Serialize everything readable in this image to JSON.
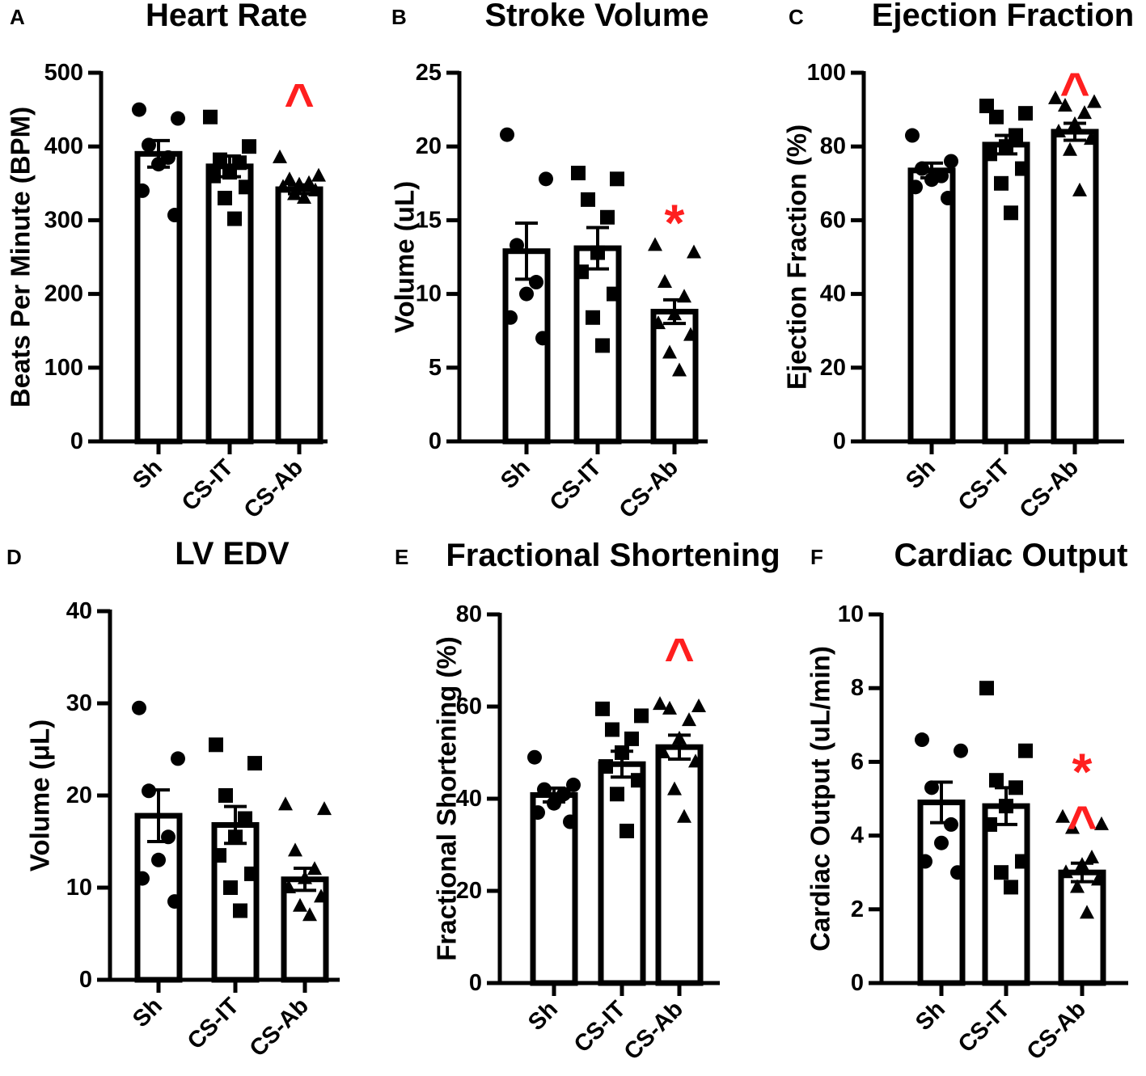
{
  "figure": {
    "colors": {
      "axis": "#000000",
      "bar_fill": "#ffffff",
      "point": "#000000",
      "annotation": "#ff1f1f"
    }
  },
  "chart_data": [
    {
      "type": "bar",
      "letter": "A",
      "title": "Heart Rate",
      "ylabel": "Beats Per Minute (BPM)",
      "xlabel": "",
      "ylim": [
        0,
        500
      ],
      "yticks": [
        0,
        100,
        200,
        300,
        400,
        500
      ],
      "categories": [
        "Sh",
        "CS-IT",
        "CS-Ab"
      ],
      "values": [
        390,
        373,
        342
      ],
      "sem": [
        18,
        14,
        6
      ],
      "points": [
        {
          "shape": "circle",
          "values": [
            450,
            438,
            402,
            385,
            376,
            340,
            307
          ]
        },
        {
          "shape": "square",
          "values": [
            440,
            400,
            382,
            378,
            365,
            360,
            345,
            330,
            302
          ]
        },
        {
          "shape": "triangle",
          "values": [
            385,
            360,
            355,
            350,
            348,
            345,
            340,
            335,
            330
          ]
        }
      ],
      "annotations": [
        {
          "category": "CS-Ab",
          "symbol": "^",
          "value": 480
        }
      ]
    },
    {
      "type": "bar",
      "letter": "B",
      "title": "Stroke Volume",
      "ylabel": "Volume (uL)",
      "xlabel": "",
      "ylim": [
        0,
        25
      ],
      "yticks": [
        0,
        5,
        10,
        15,
        20,
        25
      ],
      "categories": [
        "Sh",
        "CS-IT",
        "CS-Ab"
      ],
      "values": [
        12.9,
        13.1,
        8.8
      ],
      "sem": [
        1.9,
        1.4,
        0.8
      ],
      "points": [
        {
          "shape": "circle",
          "values": [
            20.8,
            17.8,
            13.3,
            10.8,
            10.0,
            8.4,
            7.0
          ]
        },
        {
          "shape": "square",
          "values": [
            18.2,
            17.8,
            16.4,
            15.2,
            12.8,
            11.5,
            10.0,
            8.4,
            6.5
          ]
        },
        {
          "shape": "triangle",
          "values": [
            13.3,
            12.8,
            10.8,
            9.8,
            8.6,
            8.0,
            7.2,
            6.0,
            4.8
          ]
        }
      ],
      "annotations": [
        {
          "category": "CS-Ab",
          "symbol": "*",
          "value": 15.5
        }
      ]
    },
    {
      "type": "bar",
      "letter": "C",
      "title": "Ejection Fraction",
      "ylabel": "Ejection Fraction (%)",
      "xlabel": "",
      "ylim": [
        0,
        100
      ],
      "yticks": [
        0,
        20,
        40,
        60,
        80,
        100
      ],
      "categories": [
        "Sh",
        "CS-IT",
        "CS-Ab"
      ],
      "values": [
        73.5,
        80.5,
        84
      ],
      "sem": [
        2,
        2.5,
        2.3
      ],
      "points": [
        {
          "shape": "circle",
          "values": [
            83,
            76,
            74,
            72,
            71,
            69,
            66
          ]
        },
        {
          "shape": "square",
          "values": [
            91,
            89,
            88,
            83,
            80,
            78,
            74,
            70,
            62
          ]
        },
        {
          "shape": "triangle",
          "values": [
            93,
            92,
            91,
            89,
            86,
            84,
            82,
            79,
            68
          ]
        }
      ],
      "annotations": [
        {
          "category": "CS-Ab",
          "symbol": "^",
          "value": 99
        }
      ]
    },
    {
      "type": "bar",
      "letter": "D",
      "title": "LV EDV",
      "ylabel": "Volume (μL)",
      "xlabel": "",
      "ylim": [
        0,
        40
      ],
      "yticks": [
        0,
        10,
        20,
        30,
        40
      ],
      "categories": [
        "Sh",
        "CS-IT",
        "CS-Ab"
      ],
      "values": [
        17.8,
        16.8,
        10.9
      ],
      "sem": [
        2.8,
        2.0,
        1.2
      ],
      "points": [
        {
          "shape": "circle",
          "values": [
            29.5,
            24,
            20.5,
            15.5,
            13,
            11,
            8.5
          ]
        },
        {
          "shape": "square",
          "values": [
            25.5,
            23.5,
            20,
            17.5,
            15.5,
            13.5,
            11.5,
            10,
            7.5
          ]
        },
        {
          "shape": "triangle",
          "values": [
            19,
            18.5,
            14,
            12,
            11,
            10,
            9,
            8,
            7
          ]
        }
      ],
      "annotations": []
    },
    {
      "type": "bar",
      "letter": "E",
      "title": "Fractional Shortening",
      "ylabel": "Fractional Shortening (%)",
      "xlabel": "",
      "ylim": [
        0,
        80
      ],
      "yticks": [
        0,
        20,
        40,
        60,
        80
      ],
      "categories": [
        "Sh",
        "CS-IT",
        "CS-Ab"
      ],
      "values": [
        40.8,
        47.5,
        51.2
      ],
      "sem": [
        1.5,
        2.8,
        2.6
      ],
      "points": [
        {
          "shape": "circle",
          "values": [
            49,
            43,
            42,
            41,
            39,
            37,
            35
          ]
        },
        {
          "shape": "square",
          "values": [
            59.5,
            58,
            55,
            53,
            50,
            47,
            44,
            41,
            33
          ]
        },
        {
          "shape": "triangle",
          "values": [
            60.5,
            60,
            59.5,
            57,
            53,
            50,
            48,
            42,
            36
          ]
        }
      ],
      "annotations": [
        {
          "category": "CS-Ab",
          "symbol": "^",
          "value": 74
        }
      ]
    },
    {
      "type": "bar",
      "letter": "F",
      "title": "Cardiac Output",
      "ylabel": "Cardiac Output (uL/min)",
      "xlabel": "",
      "ylim": [
        0,
        10
      ],
      "yticks": [
        0,
        2,
        4,
        6,
        8,
        10
      ],
      "categories": [
        "Sh",
        "CS-IT",
        "CS-Ab"
      ],
      "values": [
        4.9,
        4.8,
        3.0
      ],
      "sem": [
        0.55,
        0.5,
        0.25
      ],
      "points": [
        {
          "shape": "circle",
          "values": [
            6.6,
            6.3,
            5.3,
            4.3,
            3.8,
            3.3,
            3.0
          ]
        },
        {
          "shape": "square",
          "values": [
            8.0,
            6.3,
            5.5,
            5.3,
            4.8,
            4.3,
            3.3,
            3.0,
            2.6
          ]
        },
        {
          "shape": "triangle",
          "values": [
            4.5,
            4.3,
            4.2,
            3.4,
            3.2,
            3.0,
            2.8,
            2.6,
            1.9
          ]
        }
      ],
      "annotations": [
        {
          "category": "CS-Ab",
          "symbol": "*",
          "value": 6.0
        },
        {
          "category": "CS-Ab",
          "symbol": "^",
          "value": 4.7
        }
      ]
    }
  ]
}
